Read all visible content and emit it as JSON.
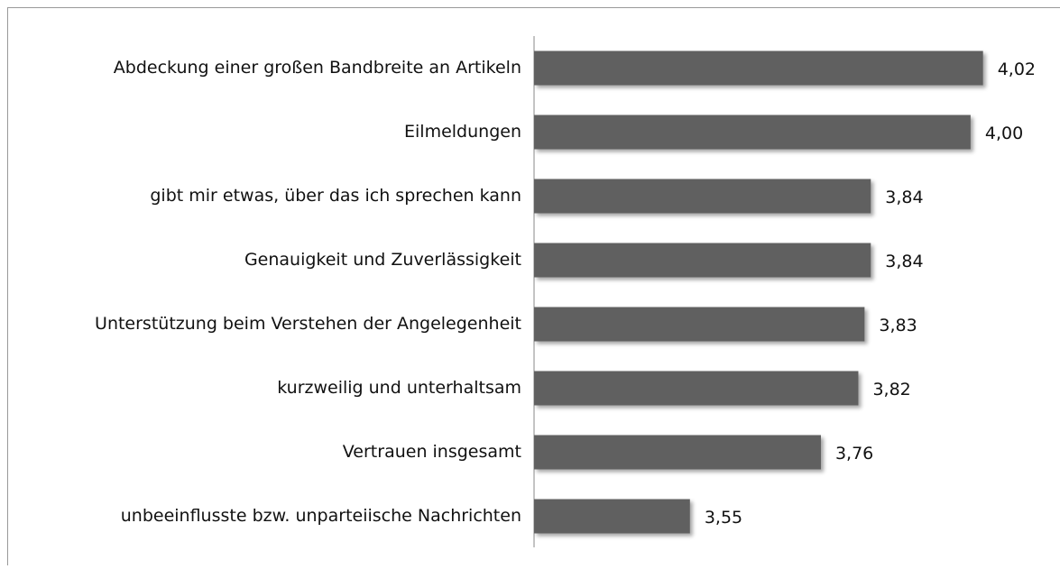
{
  "chart_data": {
    "type": "hbar",
    "categories": [
      "Abdeckung einer großen Bandbreite an Artikeln",
      "Eilmeldungen",
      "gibt mir etwas, über das ich sprechen kann",
      "Genauigkeit und Zuverlässigkeit",
      "Unterstützung beim Verstehen der Angelegenheit",
      "kurzweilig und unterhaltsam",
      "Vertrauen insgesamt",
      "unbeeinflusste bzw. unparteiische Nachrichten"
    ],
    "values": [
      4.02,
      4.0,
      3.84,
      3.84,
      3.83,
      3.82,
      3.76,
      3.55
    ],
    "value_labels": [
      "4,02",
      "4,00",
      "3,84",
      "3,84",
      "3,83",
      "3,82",
      "3,76",
      "3,55"
    ],
    "color": "#606060",
    "xlim": [
      3.3,
      4.1
    ]
  }
}
